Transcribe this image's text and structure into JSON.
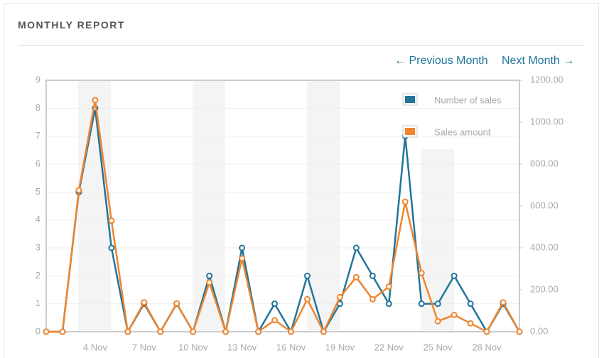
{
  "header": {
    "title": "MONTHLY REPORT"
  },
  "nav": {
    "previous": "← Previous Month",
    "next": "Next Month →"
  },
  "chart_data": {
    "type": "line",
    "categories": [
      null,
      null,
      null,
      "4 Nov",
      null,
      null,
      "7 Nov",
      null,
      null,
      "10 Nov",
      null,
      null,
      "13 Nov",
      null,
      null,
      "16 Nov",
      null,
      null,
      "19 Nov",
      null,
      null,
      "22 Nov",
      null,
      null,
      "25 Nov",
      null,
      null,
      "28 Nov",
      null,
      null
    ],
    "series": [
      {
        "name": "Number of sales",
        "color": "#21759b",
        "axis": "y",
        "values": [
          0,
          0,
          5,
          8,
          3,
          0,
          1,
          0,
          1,
          0,
          2,
          0,
          3,
          0,
          1,
          0,
          2,
          0,
          1,
          3,
          2,
          1,
          7,
          1,
          1,
          2,
          1,
          0,
          1,
          0
        ]
      },
      {
        "name": "Sales amount",
        "color": "#f0852d",
        "axis": "y2",
        "values": [
          0,
          0,
          675,
          1105,
          530,
          0,
          140,
          0,
          135,
          0,
          235,
          0,
          350,
          0,
          55,
          0,
          155,
          0,
          165,
          260,
          155,
          215,
          620,
          280,
          50,
          80,
          40,
          0,
          140,
          0
        ]
      }
    ],
    "ylim": [
      0,
      9
    ],
    "yticks": [
      0,
      1,
      2,
      3,
      4,
      5,
      6,
      7,
      8,
      9
    ],
    "y2lim": [
      0,
      1200
    ],
    "y2ticks": [
      {
        "value": 0,
        "label": "0.00"
      },
      {
        "value": 200,
        "label": "200.00"
      },
      {
        "value": 400,
        "label": "400.00"
      },
      {
        "value": 600,
        "label": "600.00"
      },
      {
        "value": 800,
        "label": "800.00"
      },
      {
        "value": 1000,
        "label": "1000.00"
      },
      {
        "value": 1200,
        "label": "1200.00"
      }
    ],
    "grid": true,
    "legend": "top-right"
  }
}
